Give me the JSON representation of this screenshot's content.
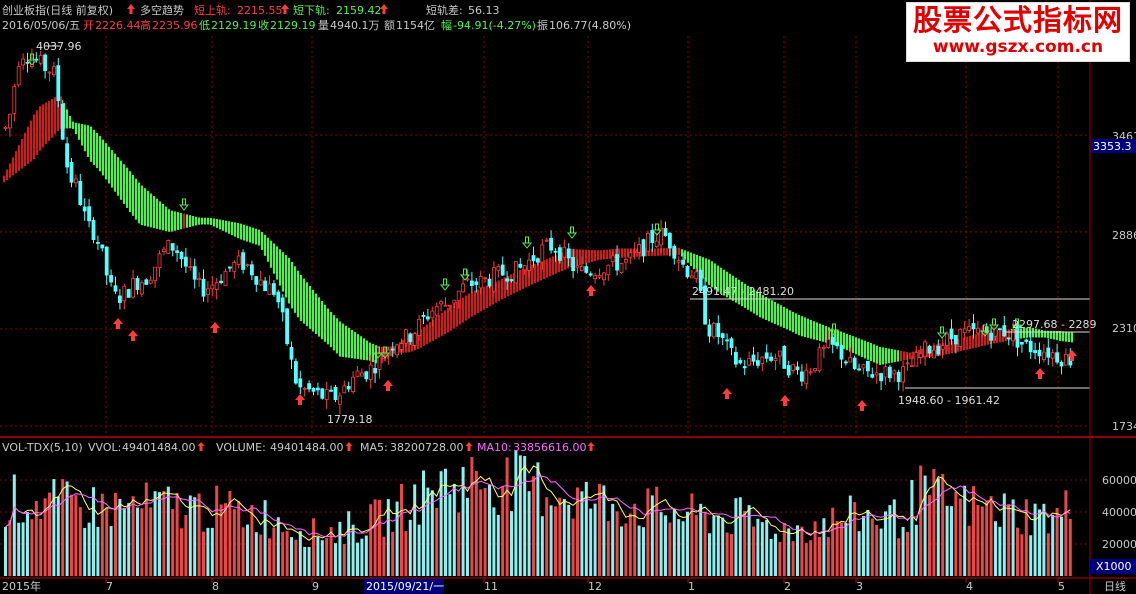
{
  "header": {
    "title": "创业板指(日线 前复权)",
    "indicator": "多空趋势",
    "up_band_label": "短上轨:",
    "up_band_value": "2215.55",
    "down_band_label": "短下轨:",
    "down_band_value": "2159.42",
    "diff_label": "短轨差:",
    "diff_value": "56.13",
    "date": "2016/05/06/五",
    "open_label": "开",
    "open": "2226.44",
    "high_label": "高",
    "high": "2235.96",
    "low_label": "低",
    "low": "2129.19",
    "close_label": "收",
    "close": "2129.19",
    "volume_label": "量",
    "volume": "4940.1万",
    "amount_label": "额",
    "amount": "1154亿",
    "change_label": "幅",
    "change": "-94.91(-4.27%)",
    "amplitude_label": "振",
    "amplitude": "106.77(4.80%)"
  },
  "watermark": {
    "line1": "股票公式指标网",
    "line2": "www.gszx.com.cn"
  },
  "price_axis": {
    "labels": [
      "3461",
      "2886",
      "2310",
      "1734"
    ],
    "current": "3353.3"
  },
  "annotations": {
    "peak": "4037.96",
    "trough": "1779.18",
    "range1": "2491.47 - 2481.20",
    "range2": "1948.60 - 1961.42",
    "range3": "2297.68 - 2289"
  },
  "volume_header": {
    "name": "VOL-TDX(5,10)",
    "vvol_label": "VVOL:",
    "vvol": "49401484.00",
    "volume_label": "VOLUME:",
    "volume": "49401484.00",
    "ma5_label": "MA5:",
    "ma5": "38200728.00",
    "ma10_label": "MA10:",
    "ma10": "33856616.00"
  },
  "volume_axis": {
    "labels": [
      "60000",
      "40000",
      "20000"
    ],
    "unit": "X1000"
  },
  "time_axis": {
    "labels": [
      "2015年",
      "7",
      "8",
      "9",
      "2015/09/21/一",
      "11",
      "12",
      "1",
      "2",
      "3",
      "4",
      "5"
    ],
    "period": "日线"
  },
  "colors": {
    "up": "#ff3c3c",
    "down": "#54ffff",
    "band_up": "#c81e1e",
    "band_down": "#50f050",
    "grid": "#8b0000",
    "ma5": "#ffff66",
    "ma10": "#ff66ff",
    "text": "#cccccc"
  },
  "chart_data": {
    "type": "candlestick",
    "title": "创业板指(日线 前复权)",
    "period": "daily",
    "price_range": [
      1734,
      4100
    ],
    "price_ticks": [
      1734,
      2310,
      2886,
      3461
    ],
    "price_key_points": [
      {
        "month": "2015-06",
        "close": 3900
      },
      {
        "month": "2015-06 peak",
        "high": 4037.96
      },
      {
        "month": "2015-07",
        "close": 2600
      },
      {
        "month": "2015-08",
        "close": 2700
      },
      {
        "month": "2015-09",
        "close": 1950
      },
      {
        "month": "2015-09 trough",
        "low": 1779.18
      },
      {
        "month": "2015-10",
        "close": 2350
      },
      {
        "month": "2015-11",
        "close": 2700
      },
      {
        "month": "2015-12",
        "close": 2800
      },
      {
        "month": "2016-01",
        "close": 2300
      },
      {
        "month": "2016-02",
        "close": 2100
      },
      {
        "month": "2016-03",
        "close": 2200
      },
      {
        "month": "2016-04",
        "close": 2250
      },
      {
        "month": "2016-05",
        "close": 2129.19
      }
    ],
    "volume_range": [
      0,
      75000
    ],
    "volume_ticks": [
      20000,
      40000,
      60000
    ],
    "volume_unit": "X1000",
    "volume_key_points": [
      {
        "month": "2015-06",
        "volume": 50000
      },
      {
        "month": "2015-07",
        "volume": 45000
      },
      {
        "month": "2015-08",
        "volume": 45000
      },
      {
        "month": "2015-09",
        "volume": 30000
      },
      {
        "month": "2015-10",
        "volume": 45000
      },
      {
        "month": "2015-11",
        "volume": 65000
      },
      {
        "month": "2015-12",
        "volume": 50000
      },
      {
        "month": "2016-01",
        "volume": 40000
      },
      {
        "month": "2016-02",
        "volume": 30000
      },
      {
        "month": "2016-03",
        "volume": 45000
      },
      {
        "month": "2016-04",
        "volume": 45000
      },
      {
        "month": "2016-05",
        "volume": 49401
      }
    ]
  }
}
